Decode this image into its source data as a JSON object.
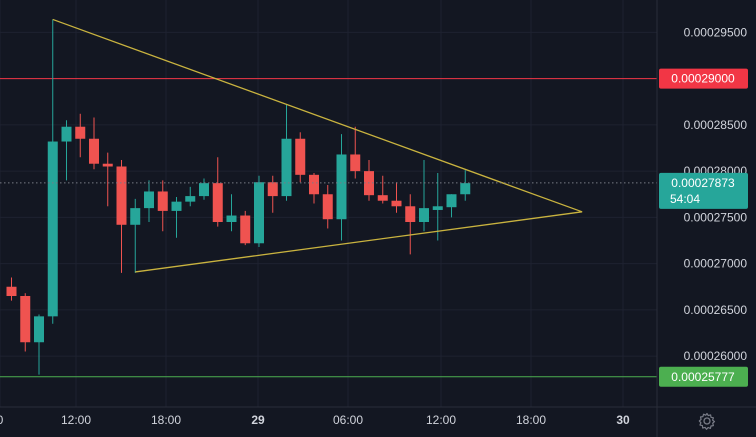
{
  "chart_data": {
    "type": "candlestick",
    "yticks": [
      "0.00029500",
      "0.00029000",
      "0.00028500",
      "0.00028000",
      "0.00027500",
      "0.00027000",
      "0.00026500",
      "0.00026000"
    ],
    "ytick_values": [
      0.000295,
      0.00029,
      0.000285,
      0.00028,
      0.000275,
      0.00027,
      0.000265,
      0.00026
    ],
    "ylim": [
      0.0002545,
      0.0002985
    ],
    "xticks": [
      "0",
      "12:00",
      "18:00",
      "29",
      "06:00",
      "12:00",
      "18:00",
      "30"
    ],
    "bold_xticks": [
      "29",
      "30"
    ],
    "candle_interval": "1h",
    "candles": [
      {
        "t": -8,
        "o": 0.0002675,
        "h": 0.0002685,
        "l": 0.000266,
        "c": 0.0002665
      },
      {
        "t": -7,
        "o": 0.0002665,
        "h": 0.0002668,
        "l": 0.0002605,
        "c": 0.0002615
      },
      {
        "t": -6,
        "o": 0.0002615,
        "h": 0.0002645,
        "l": 0.000258,
        "c": 0.0002643
      },
      {
        "t": -5,
        "o": 0.0002643,
        "h": 0.0002964,
        "l": 0.0002635,
        "c": 0.0002832
      },
      {
        "t": -4,
        "o": 0.0002832,
        "h": 0.0002855,
        "l": 0.000279,
        "c": 0.0002848
      },
      {
        "t": -3,
        "o": 0.0002848,
        "h": 0.0002862,
        "l": 0.0002815,
        "c": 0.0002835
      },
      {
        "t": -2,
        "o": 0.0002835,
        "h": 0.0002858,
        "l": 0.0002802,
        "c": 0.0002808
      },
      {
        "t": -1,
        "o": 0.0002808,
        "h": 0.000282,
        "l": 0.0002762,
        "c": 0.0002805
      },
      {
        "t": 0,
        "o": 0.0002805,
        "h": 0.0002812,
        "l": 0.000269,
        "c": 0.0002742
      },
      {
        "t": 1,
        "o": 0.0002742,
        "h": 0.000277,
        "l": 0.000269,
        "c": 0.000276
      },
      {
        "t": 2,
        "o": 0.000276,
        "h": 0.000279,
        "l": 0.0002745,
        "c": 0.0002778
      },
      {
        "t": 3,
        "o": 0.0002778,
        "h": 0.000279,
        "l": 0.0002735,
        "c": 0.0002757
      },
      {
        "t": 4,
        "o": 0.0002757,
        "h": 0.0002772,
        "l": 0.0002728,
        "c": 0.0002767
      },
      {
        "t": 5,
        "o": 0.0002767,
        "h": 0.0002783,
        "l": 0.0002762,
        "c": 0.0002773
      },
      {
        "t": 6,
        "o": 0.0002773,
        "h": 0.0002792,
        "l": 0.0002769,
        "c": 0.0002787
      },
      {
        "t": 7,
        "o": 0.0002787,
        "h": 0.0002815,
        "l": 0.000274,
        "c": 0.0002745
      },
      {
        "t": 8,
        "o": 0.0002745,
        "h": 0.0002775,
        "l": 0.0002735,
        "c": 0.0002752
      },
      {
        "t": 9,
        "o": 0.0002752,
        "h": 0.0002757,
        "l": 0.000272,
        "c": 0.0002722
      },
      {
        "t": 10,
        "o": 0.0002722,
        "h": 0.0002795,
        "l": 0.0002718,
        "c": 0.0002788
      },
      {
        "t": 11,
        "o": 0.0002788,
        "h": 0.0002795,
        "l": 0.0002755,
        "c": 0.0002773
      },
      {
        "t": 12,
        "o": 0.0002773,
        "h": 0.0002872,
        "l": 0.0002768,
        "c": 0.0002835
      },
      {
        "t": 13,
        "o": 0.0002835,
        "h": 0.0002842,
        "l": 0.0002788,
        "c": 0.0002796
      },
      {
        "t": 14,
        "o": 0.0002796,
        "h": 0.0002798,
        "l": 0.0002765,
        "c": 0.0002775
      },
      {
        "t": 15,
        "o": 0.0002775,
        "h": 0.0002785,
        "l": 0.0002738,
        "c": 0.0002748
      },
      {
        "t": 16,
        "o": 0.0002748,
        "h": 0.000284,
        "l": 0.0002725,
        "c": 0.0002818
      },
      {
        "t": 17,
        "o": 0.0002818,
        "h": 0.0002848,
        "l": 0.0002792,
        "c": 0.00028
      },
      {
        "t": 18,
        "o": 0.00028,
        "h": 0.0002812,
        "l": 0.0002768,
        "c": 0.0002774
      },
      {
        "t": 19,
        "o": 0.0002774,
        "h": 0.0002795,
        "l": 0.0002765,
        "c": 0.0002768
      },
      {
        "t": 20,
        "o": 0.0002768,
        "h": 0.0002788,
        "l": 0.0002755,
        "c": 0.0002762
      },
      {
        "t": 21,
        "o": 0.0002762,
        "h": 0.0002775,
        "l": 0.000271,
        "c": 0.0002745
      },
      {
        "t": 22,
        "o": 0.0002745,
        "h": 0.0002812,
        "l": 0.0002735,
        "c": 0.000276
      },
      {
        "t": 23,
        "o": 0.0002758,
        "h": 0.0002798,
        "l": 0.0002725,
        "c": 0.0002762
      },
      {
        "t": 24,
        "o": 0.0002761,
        "h": 0.0002775,
        "l": 0.000275,
        "c": 0.0002775
      },
      {
        "t": 25,
        "o": 0.0002775,
        "h": 0.0002801,
        "l": 0.0002768,
        "c": 0.0002787
      }
    ],
    "colors": {
      "up": "#26a69a",
      "down": "#ef5350",
      "background": "#131722",
      "trendline": "#c9b33f"
    },
    "trendlines": [
      {
        "from": {
          "t": -5,
          "price": 0.0002964
        },
        "to": {
          "t": 33.5,
          "price": 0.0002756
        }
      },
      {
        "from": {
          "t": 1,
          "price": 0.0002691
        },
        "to": {
          "t": 33.5,
          "price": 0.0002756
        }
      }
    ],
    "horizontal_lines": [
      {
        "price": 0.00029,
        "label": "0.00029000",
        "color": "#f23645"
      },
      {
        "price": 0.00025777,
        "label": "0.00025777",
        "color": "#4caf50"
      }
    ],
    "current_price": {
      "price": 0.00027873,
      "label": "0.00027873",
      "countdown": "54:04",
      "color": "#26a69a"
    }
  }
}
